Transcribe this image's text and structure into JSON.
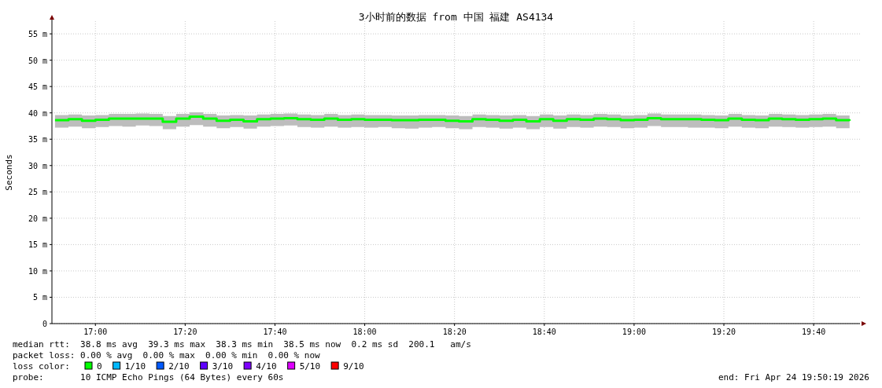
{
  "chart_data": {
    "type": "step",
    "title": "3小时前的数据 from 中国 福建 AS4134",
    "ylabel": "Seconds",
    "legend_title": "loss color:",
    "legend": "bottom",
    "grid": true,
    "xlim": [
      16.8386,
      19.8386
    ],
    "ylim": [
      0,
      57.4
    ],
    "xticks": [
      {
        "value": 17,
        "label": "17:00"
      },
      {
        "value": 17.3333,
        "label": "17:20"
      },
      {
        "value": 17.6667,
        "label": "17:40"
      },
      {
        "value": 18,
        "label": "18:00"
      },
      {
        "value": 18.3333,
        "label": "18:20"
      },
      {
        "value": 18.6667,
        "label": "18:40"
      },
      {
        "value": 19,
        "label": "19:00"
      },
      {
        "value": 19.3333,
        "label": "19:20"
      },
      {
        "value": 19.6667,
        "label": "19:40"
      }
    ],
    "yticks": [
      {
        "value": 0,
        "label": "0"
      },
      {
        "value": 5,
        "label": "5 m"
      },
      {
        "value": 10,
        "label": "10 m"
      },
      {
        "value": 15,
        "label": "15 m"
      },
      {
        "value": 20,
        "label": "20 m"
      },
      {
        "value": 25,
        "label": "25 m"
      },
      {
        "value": 30,
        "label": "30 m"
      },
      {
        "value": 35,
        "label": "35 m"
      },
      {
        "value": 40,
        "label": "40 m"
      },
      {
        "value": 45,
        "label": "45 m"
      },
      {
        "value": 50,
        "label": "50 m"
      },
      {
        "value": 55,
        "label": "55 m"
      }
    ],
    "annotations": [
      "median rtt:  38.8 ms avg  39.3 ms max  38.3 ms min  38.5 ms now  0.2 ms sd  200.1   am/s",
      "packet loss: 0.00 % avg  0.00 % max  0.00 % min  0.00 % now",
      "probe:       10 ICMP Echo Pings (64 Bytes) every 60s",
      "end: Fri Apr 24 19:50:19 2026"
    ],
    "x": [
      16.85,
      16.9,
      16.95,
      17.0,
      17.05,
      17.1,
      17.15,
      17.2,
      17.25,
      17.3,
      17.35,
      17.4,
      17.45,
      17.5,
      17.55,
      17.6,
      17.65,
      17.7,
      17.75,
      17.8,
      17.85,
      17.9,
      17.95,
      18.0,
      18.05,
      18.1,
      18.15,
      18.2,
      18.25,
      18.3,
      18.35,
      18.4,
      18.45,
      18.5,
      18.55,
      18.6,
      18.65,
      18.7,
      18.75,
      18.8,
      18.85,
      18.9,
      18.95,
      19.0,
      19.05,
      19.1,
      19.15,
      19.2,
      19.25,
      19.3,
      19.35,
      19.4,
      19.45,
      19.5,
      19.55,
      19.6,
      19.65,
      19.7,
      19.75,
      19.8
    ],
    "series": [
      {
        "name": "0",
        "color": "#00ff00",
        "values": [
          38.6,
          38.8,
          38.5,
          38.7,
          38.9,
          38.9,
          38.9,
          38.9,
          38.3,
          38.9,
          39.3,
          38.9,
          38.5,
          38.7,
          38.4,
          38.8,
          38.9,
          39.0,
          38.8,
          38.7,
          38.9,
          38.7,
          38.8,
          38.7,
          38.7,
          38.6,
          38.6,
          38.7,
          38.7,
          38.5,
          38.4,
          38.8,
          38.7,
          38.5,
          38.7,
          38.4,
          38.8,
          38.5,
          38.8,
          38.7,
          38.9,
          38.8,
          38.6,
          38.7,
          39.0,
          38.8,
          38.8,
          38.8,
          38.7,
          38.6,
          38.9,
          38.7,
          38.6,
          38.9,
          38.8,
          38.7,
          38.8,
          38.9,
          38.6,
          38.5
        ],
        "lower": [
          37.2,
          37.4,
          37.1,
          37.3,
          37.5,
          37.4,
          37.6,
          37.5,
          36.9,
          37.4,
          37.7,
          37.4,
          37.1,
          37.3,
          37.0,
          37.4,
          37.5,
          37.6,
          37.3,
          37.2,
          37.4,
          37.2,
          37.3,
          37.2,
          37.3,
          37.1,
          37.0,
          37.2,
          37.3,
          37.1,
          36.9,
          37.3,
          37.2,
          37.0,
          37.2,
          36.9,
          37.3,
          37.0,
          37.3,
          37.2,
          37.4,
          37.3,
          37.1,
          37.2,
          37.5,
          37.3,
          37.3,
          37.2,
          37.2,
          37.1,
          37.4,
          37.2,
          37.1,
          37.4,
          37.3,
          37.2,
          37.3,
          37.4,
          37.1,
          37.1
        ],
        "upper": [
          39.6,
          39.7,
          39.5,
          39.6,
          39.8,
          39.8,
          39.9,
          39.8,
          39.4,
          39.8,
          40.1,
          39.8,
          39.5,
          39.6,
          39.5,
          39.7,
          39.8,
          39.9,
          39.7,
          39.6,
          39.8,
          39.6,
          39.7,
          39.6,
          39.6,
          39.5,
          39.5,
          39.6,
          39.6,
          39.5,
          39.4,
          39.7,
          39.6,
          39.5,
          39.6,
          39.4,
          39.7,
          39.5,
          39.7,
          39.6,
          39.8,
          39.7,
          39.5,
          39.6,
          39.9,
          39.7,
          39.7,
          39.7,
          39.6,
          39.5,
          39.8,
          39.6,
          39.5,
          39.8,
          39.7,
          39.6,
          39.7,
          39.8,
          39.5,
          39.5
        ]
      },
      {
        "name": "1/10",
        "color": "#00b8ff",
        "values": [
          null,
          null,
          null,
          null,
          null,
          null,
          null,
          null,
          null,
          null,
          null,
          null,
          null,
          null,
          null,
          null,
          null,
          null,
          null,
          null,
          null,
          null,
          null,
          null,
          null,
          null,
          null,
          null,
          null,
          null,
          null,
          null,
          null,
          null,
          null,
          null,
          null,
          null,
          null,
          null,
          null,
          null,
          null,
          null,
          null,
          null,
          null,
          null,
          null,
          null,
          null,
          null,
          null,
          null,
          null,
          null,
          null,
          null,
          null,
          null
        ]
      },
      {
        "name": "2/10",
        "color": "#0059ff",
        "values": [
          null,
          null,
          null,
          null,
          null,
          null,
          null,
          null,
          null,
          null,
          null,
          null,
          null,
          null,
          null,
          null,
          null,
          null,
          null,
          null,
          null,
          null,
          null,
          null,
          null,
          null,
          null,
          null,
          null,
          null,
          null,
          null,
          null,
          null,
          null,
          null,
          null,
          null,
          null,
          null,
          null,
          null,
          null,
          null,
          null,
          null,
          null,
          null,
          null,
          null,
          null,
          null,
          null,
          null,
          null,
          null,
          null,
          null,
          null,
          null
        ]
      },
      {
        "name": "3/10",
        "color": "#5e00ff",
        "values": [
          null,
          null,
          null,
          null,
          null,
          null,
          null,
          null,
          null,
          null,
          null,
          null,
          null,
          null,
          null,
          null,
          null,
          null,
          null,
          null,
          null,
          null,
          null,
          null,
          null,
          null,
          null,
          null,
          null,
          null,
          null,
          null,
          null,
          null,
          null,
          null,
          null,
          null,
          null,
          null,
          null,
          null,
          null,
          null,
          null,
          null,
          null,
          null,
          null,
          null,
          null,
          null,
          null,
          null,
          null,
          null,
          null,
          null,
          null,
          null
        ]
      },
      {
        "name": "4/10",
        "color": "#7e00ff",
        "values": [
          null,
          null,
          null,
          null,
          null,
          null,
          null,
          null,
          null,
          null,
          null,
          null,
          null,
          null,
          null,
          null,
          null,
          null,
          null,
          null,
          null,
          null,
          null,
          null,
          null,
          null,
          null,
          null,
          null,
          null,
          null,
          null,
          null,
          null,
          null,
          null,
          null,
          null,
          null,
          null,
          null,
          null,
          null,
          null,
          null,
          null,
          null,
          null,
          null,
          null,
          null,
          null,
          null,
          null,
          null,
          null,
          null,
          null,
          null,
          null
        ]
      },
      {
        "name": "5/10",
        "color": "#dd00ff",
        "values": [
          null,
          null,
          null,
          null,
          null,
          null,
          null,
          null,
          null,
          null,
          null,
          null,
          null,
          null,
          null,
          null,
          null,
          null,
          null,
          null,
          null,
          null,
          null,
          null,
          null,
          null,
          null,
          null,
          null,
          null,
          null,
          null,
          null,
          null,
          null,
          null,
          null,
          null,
          null,
          null,
          null,
          null,
          null,
          null,
          null,
          null,
          null,
          null,
          null,
          null,
          null,
          null,
          null,
          null,
          null,
          null,
          null,
          null,
          null,
          null
        ]
      },
      {
        "name": "9/10",
        "color": "#ff0000",
        "values": [
          null,
          null,
          null,
          null,
          null,
          null,
          null,
          null,
          null,
          null,
          null,
          null,
          null,
          null,
          null,
          null,
          null,
          null,
          null,
          null,
          null,
          null,
          null,
          null,
          null,
          null,
          null,
          null,
          null,
          null,
          null,
          null,
          null,
          null,
          null,
          null,
          null,
          null,
          null,
          null,
          null,
          null,
          null,
          null,
          null,
          null,
          null,
          null,
          null,
          null,
          null,
          null,
          null,
          null,
          null,
          null,
          null,
          null,
          null,
          null
        ]
      }
    ]
  }
}
